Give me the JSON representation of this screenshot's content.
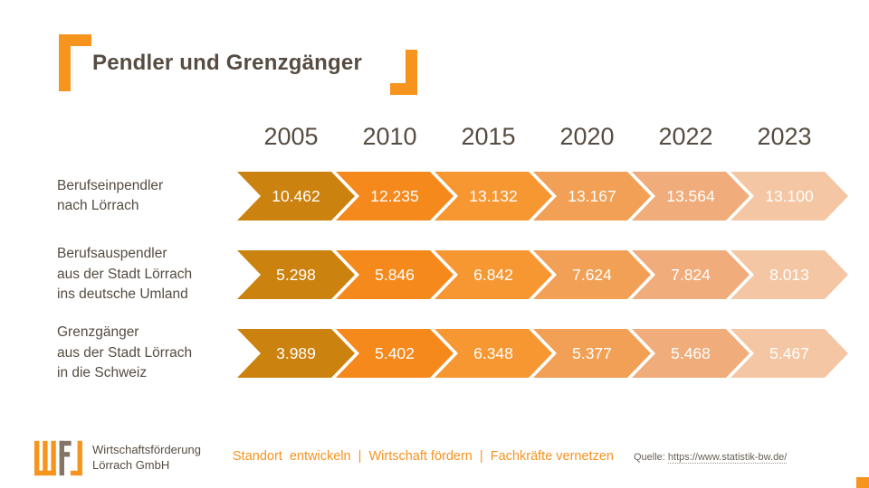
{
  "title": "Pendler und Grenzgänger",
  "years": [
    "2005",
    "2010",
    "2015",
    "2020",
    "2022",
    "2023"
  ],
  "rows": [
    {
      "label_lines": [
        "Berufseinpendler",
        "nach Lörrach"
      ],
      "values": [
        "10.462",
        "12.235",
        "13.132",
        "13.167",
        "13.564",
        "13.100"
      ]
    },
    {
      "label_lines": [
        "Berufsauspendler",
        "aus der Stadt Lörrach",
        "ins deutsche Umland"
      ],
      "values": [
        "5.298",
        "5.846",
        "6.842",
        "7.624",
        "7.824",
        "8.013"
      ]
    },
    {
      "label_lines": [
        "Grenzgänger",
        "aus der Stadt Lörrach",
        "in die Schweiz"
      ],
      "values": [
        "3.989",
        "5.402",
        "6.348",
        "5.377",
        "5.468",
        "5.467"
      ]
    }
  ],
  "arrow_colors": [
    "#CB820E",
    "#F6891C",
    "#F79732",
    "#F1A055",
    "#F0AC7A",
    "#F4C6A3"
  ],
  "colors": {
    "accent_orange": "#F7941D",
    "logo_gray": "#857565",
    "text_dark": "#564C42"
  },
  "footer": {
    "company_line1": "Wirtschaftsförderung",
    "company_line2": "Lörrach GmbH",
    "tagline": "Standort  entwickeln  |  Wirtschaft fördern  |  Fachkräfte vernetzen",
    "source_label": "Quelle:",
    "source_url": "https://www.statistik-bw.de/"
  },
  "chart_data": {
    "type": "table",
    "title": "Pendler und Grenzgänger",
    "categories": [
      2005,
      2010,
      2015,
      2020,
      2022,
      2023
    ],
    "series": [
      {
        "name": "Berufseinpendler nach Lörrach",
        "values": [
          10462,
          12235,
          13132,
          13167,
          13564,
          13100
        ]
      },
      {
        "name": "Berufsauspendler aus der Stadt Lörrach ins deutsche Umland",
        "values": [
          5298,
          5846,
          6842,
          7624,
          7824,
          8013
        ]
      },
      {
        "name": "Grenzgänger aus der Stadt Lörrach in die Schweiz",
        "values": [
          3989,
          5402,
          6348,
          5377,
          5468,
          5467
        ]
      }
    ],
    "layout": "horizontal chevron-arrow timeline, one row per series, color fades from dark orange (oldest year) to pale orange (newest year)"
  }
}
